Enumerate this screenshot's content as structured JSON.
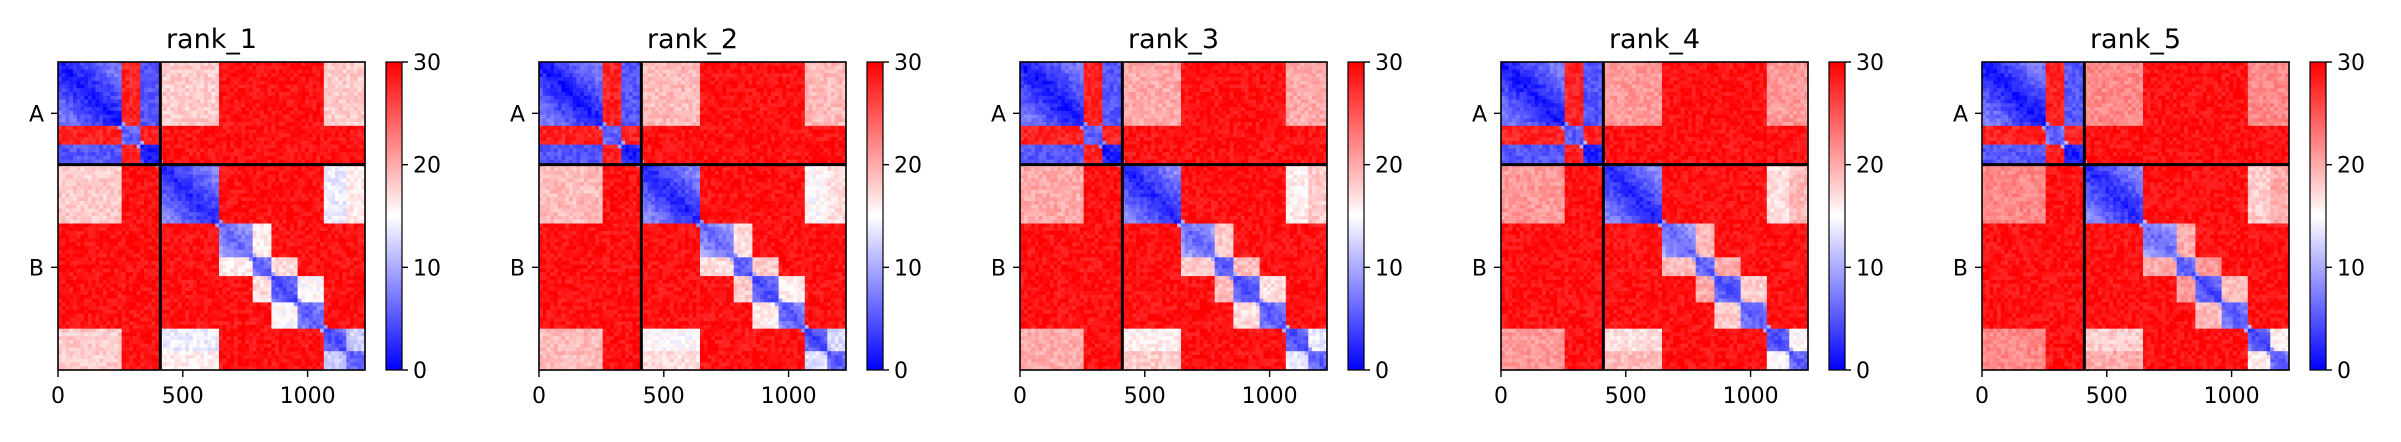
{
  "chart_data": {
    "type": "heatmap",
    "colorscale": {
      "name": "bwr",
      "colors": [
        "#0000ff",
        "#ffffff",
        "#ff0000"
      ],
      "vmin": 0,
      "vmax": 30,
      "ticks": [
        "0",
        "10",
        "20",
        "30"
      ]
    },
    "sequence_length": 1230,
    "chain_boundary": 410,
    "x_ticks": [
      {
        "value": 0,
        "label": "0"
      },
      {
        "value": 500,
        "label": "500"
      },
      {
        "value": 1000,
        "label": "1000"
      }
    ],
    "y_ticks": [
      {
        "value": 205,
        "label": "A"
      },
      {
        "value": 820,
        "label": "B"
      }
    ],
    "panels": [
      {
        "title": "rank_1"
      },
      {
        "title": "rank_2"
      },
      {
        "title": "rank_3"
      },
      {
        "title": "rank_4"
      },
      {
        "title": "rank_5"
      }
    ]
  }
}
